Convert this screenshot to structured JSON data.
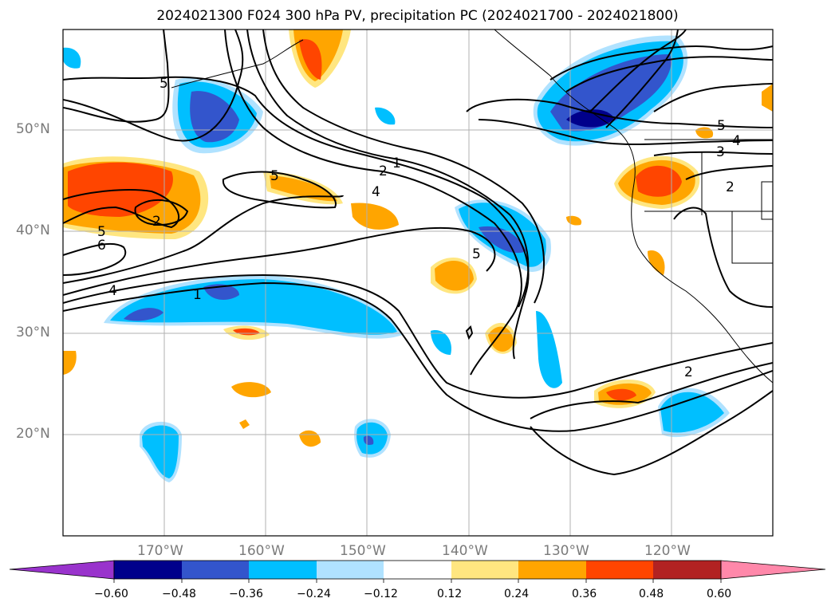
{
  "title": "2024021300 F024 300 hPa PV, precipitation PC (2024021700 - 2024021800)",
  "map_extent": {
    "lon_min": -180,
    "lon_max": -110,
    "lat_min": 10,
    "lat_max": 60
  },
  "lat_ticks": [
    {
      "value": 50,
      "label": "50°N"
    },
    {
      "value": 40,
      "label": "40°N"
    },
    {
      "value": 30,
      "label": "30°N"
    },
    {
      "value": 20,
      "label": "20°N"
    }
  ],
  "lon_ticks": [
    {
      "value": -170,
      "label": "170°W"
    },
    {
      "value": -160,
      "label": "160°W"
    },
    {
      "value": -150,
      "label": "150°W"
    },
    {
      "value": -140,
      "label": "140°W"
    },
    {
      "value": -130,
      "label": "130°W"
    },
    {
      "value": -120,
      "label": "120°W"
    }
  ],
  "colorbar": {
    "levels": [
      "−0.60",
      "−0.48",
      "−0.36",
      "−0.24",
      "−0.12",
      "0.12",
      "0.24",
      "0.36",
      "0.48",
      "0.60"
    ],
    "colors": [
      "#9933cc",
      "#00008b",
      "#3355cc",
      "#00bfff",
      "#b0e2ff",
      "#ffffff",
      "#ffe680",
      "#ffa500",
      "#ff4500",
      "#b22222",
      "#ff88aa"
    ],
    "extend": "both"
  },
  "contour_labels": [
    "5",
    "1",
    "2",
    "4",
    "5",
    "5",
    "6",
    "4",
    "1",
    "2",
    "5",
    "5",
    "4",
    "3",
    "2",
    "2"
  ],
  "colors": {
    "grid": "#b0b0b0",
    "contour": "#000000",
    "tick_label": "#7a7a7a"
  }
}
